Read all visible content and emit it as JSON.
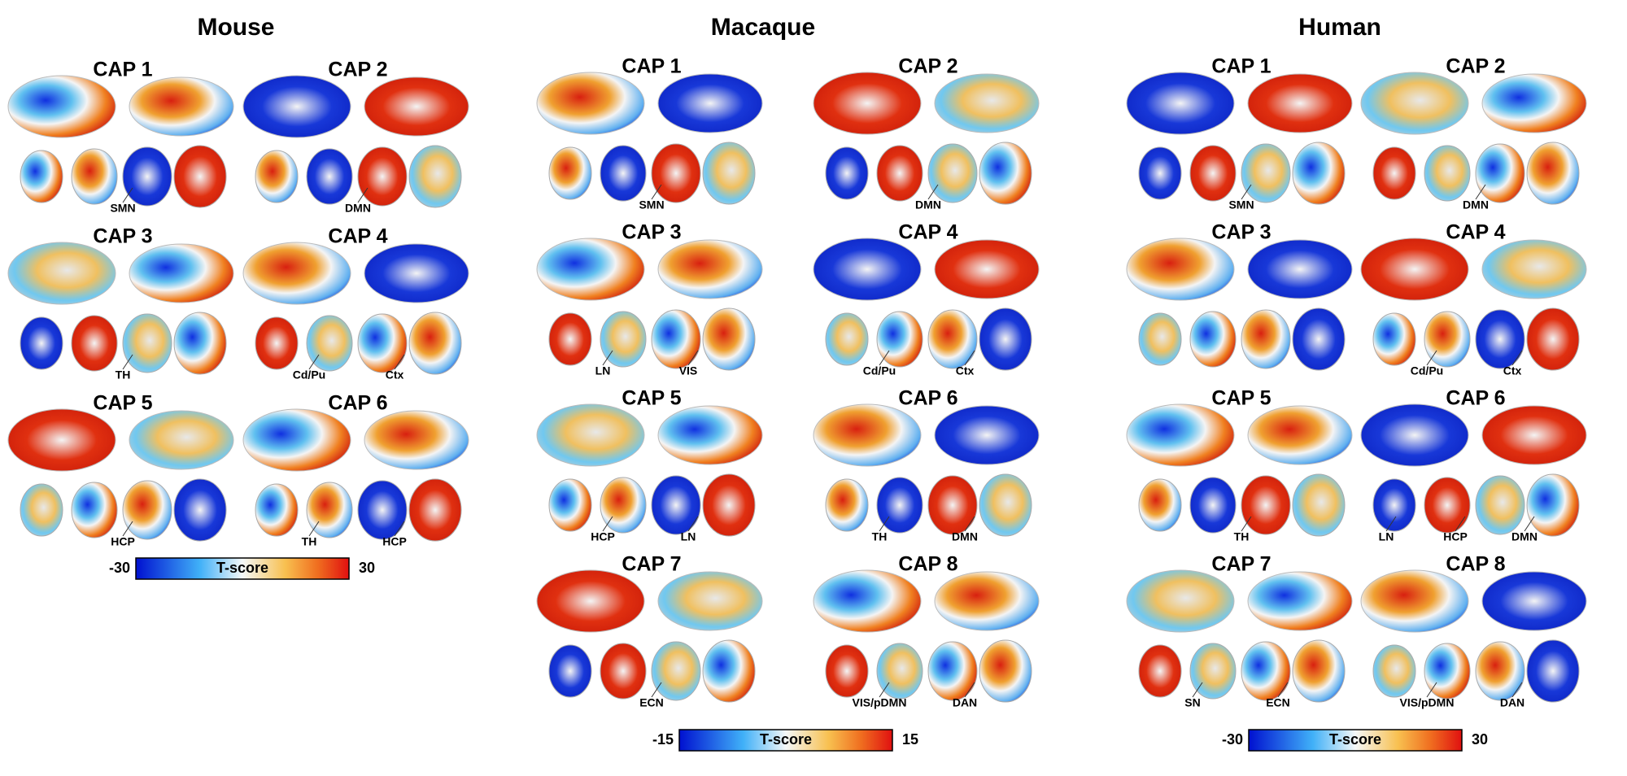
{
  "panels": [
    {
      "title": "Mouse",
      "caps": [
        {
          "title": "CAP 1",
          "labels": [
            "SMN"
          ]
        },
        {
          "title": "CAP 2",
          "labels": [
            "DMN"
          ]
        },
        {
          "title": "CAP 3",
          "labels": [
            "TH"
          ]
        },
        {
          "title": "CAP 4",
          "labels": [
            "Cd/Pu",
            "Ctx"
          ]
        },
        {
          "title": "CAP 5",
          "labels": [
            "HCP"
          ]
        },
        {
          "title": "CAP 6",
          "labels": [
            "TH",
            "HCP"
          ]
        }
      ],
      "colorbar": {
        "min": -30,
        "label": "T-score",
        "max": 30
      }
    },
    {
      "title": "Macaque",
      "caps": [
        {
          "title": "CAP 1",
          "labels": [
            "SMN"
          ]
        },
        {
          "title": "CAP 2",
          "labels": [
            "DMN"
          ]
        },
        {
          "title": "CAP 3",
          "labels": [
            "LN",
            "VIS"
          ]
        },
        {
          "title": "CAP 4",
          "labels": [
            "Cd/Pu",
            "Ctx"
          ]
        },
        {
          "title": "CAP 5",
          "labels": [
            "HCP",
            "LN"
          ]
        },
        {
          "title": "CAP 6",
          "labels": [
            "TH",
            "DMN"
          ]
        },
        {
          "title": "CAP 7",
          "labels": [
            "ECN"
          ]
        },
        {
          "title": "CAP 8",
          "labels": [
            "VIS/pDMN",
            "DAN"
          ]
        }
      ],
      "colorbar": {
        "min": -15,
        "label": "T-score",
        "max": 15
      }
    },
    {
      "title": "Human",
      "caps": [
        {
          "title": "CAP 1",
          "labels": [
            "SMN"
          ]
        },
        {
          "title": "CAP 2",
          "labels": [
            "DMN"
          ]
        },
        {
          "title": "CAP 3",
          "labels": []
        },
        {
          "title": "CAP 4",
          "labels": [
            "Cd/Pu",
            "Ctx"
          ]
        },
        {
          "title": "CAP 5",
          "labels": [
            "TH"
          ]
        },
        {
          "title": "CAP 6",
          "labels": [
            "LN",
            "HCP",
            "DMN"
          ]
        },
        {
          "title": "CAP 7",
          "labels": [
            "SN",
            "ECN"
          ]
        },
        {
          "title": "CAP 8",
          "labels": [
            "VIS/pDMN",
            "DAN"
          ]
        }
      ],
      "colorbar": {
        "min": -30,
        "label": "T-score",
        "max": 30
      }
    }
  ]
}
